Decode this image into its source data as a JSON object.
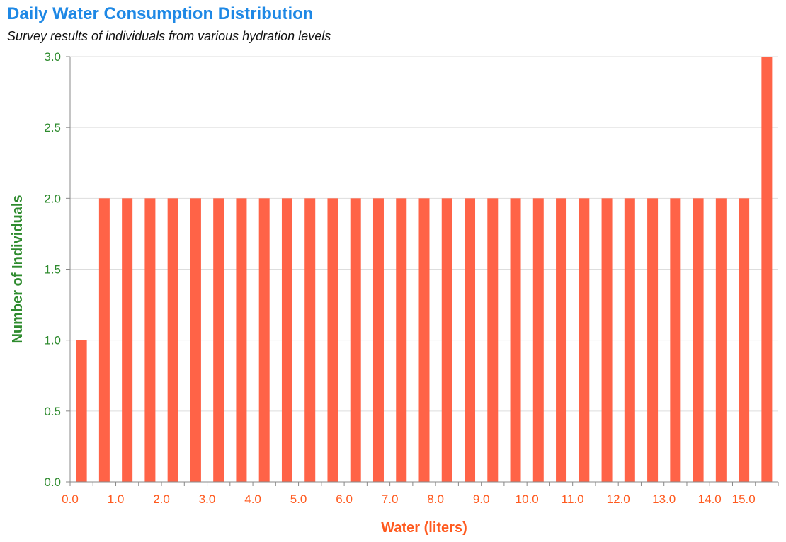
{
  "title": "Daily Water Consumption Distribution",
  "subtitle": "Survey results of individuals from various hydration levels",
  "colors": {
    "title": "#1E88E5",
    "bar": "#FF6347",
    "x_axis_text": "#FF5A1F",
    "y_axis_text": "#2E8B2E",
    "grid": "#dddddd",
    "axis_line": "#888888"
  },
  "chart_data": {
    "type": "bar",
    "title": "Daily Water Consumption Distribution",
    "subtitle": "Survey results of individuals from various hydration levels",
    "xlabel": "Water (liters)",
    "ylabel": "Number of Individuals",
    "bin_width": 0.5,
    "bins": [
      {
        "start": 0.0,
        "count": 1
      },
      {
        "start": 0.5,
        "count": 2
      },
      {
        "start": 1.0,
        "count": 2
      },
      {
        "start": 1.5,
        "count": 2
      },
      {
        "start": 2.0,
        "count": 2
      },
      {
        "start": 2.5,
        "count": 2
      },
      {
        "start": 3.0,
        "count": 2
      },
      {
        "start": 3.5,
        "count": 2
      },
      {
        "start": 4.0,
        "count": 2
      },
      {
        "start": 4.5,
        "count": 2
      },
      {
        "start": 5.0,
        "count": 2
      },
      {
        "start": 5.5,
        "count": 2
      },
      {
        "start": 6.0,
        "count": 2
      },
      {
        "start": 6.5,
        "count": 2
      },
      {
        "start": 7.0,
        "count": 2
      },
      {
        "start": 7.5,
        "count": 2
      },
      {
        "start": 8.0,
        "count": 2
      },
      {
        "start": 8.5,
        "count": 2
      },
      {
        "start": 9.0,
        "count": 2
      },
      {
        "start": 9.5,
        "count": 2
      },
      {
        "start": 10.0,
        "count": 2
      },
      {
        "start": 10.5,
        "count": 2
      },
      {
        "start": 11.0,
        "count": 2
      },
      {
        "start": 11.5,
        "count": 2
      },
      {
        "start": 12.0,
        "count": 2
      },
      {
        "start": 12.5,
        "count": 2
      },
      {
        "start": 13.0,
        "count": 2
      },
      {
        "start": 13.5,
        "count": 2
      },
      {
        "start": 14.0,
        "count": 2
      },
      {
        "start": 14.5,
        "count": 2
      },
      {
        "start": 15.0,
        "count": 3
      }
    ],
    "xlim": [
      0.0,
      15.0
    ],
    "ylim": [
      0.0,
      3.0
    ],
    "x_ticks": [
      "0.0",
      "1.0",
      "2.0",
      "3.0",
      "4.0",
      "5.0",
      "6.0",
      "7.0",
      "8.0",
      "9.0",
      "10.0",
      "11.0",
      "12.0",
      "13.0",
      "14.0",
      "15.0"
    ],
    "y_ticks": [
      "0.0",
      "0.5",
      "1.0",
      "1.5",
      "2.0",
      "2.5",
      "3.0"
    ],
    "grid": "horizontal",
    "legend": "none"
  }
}
